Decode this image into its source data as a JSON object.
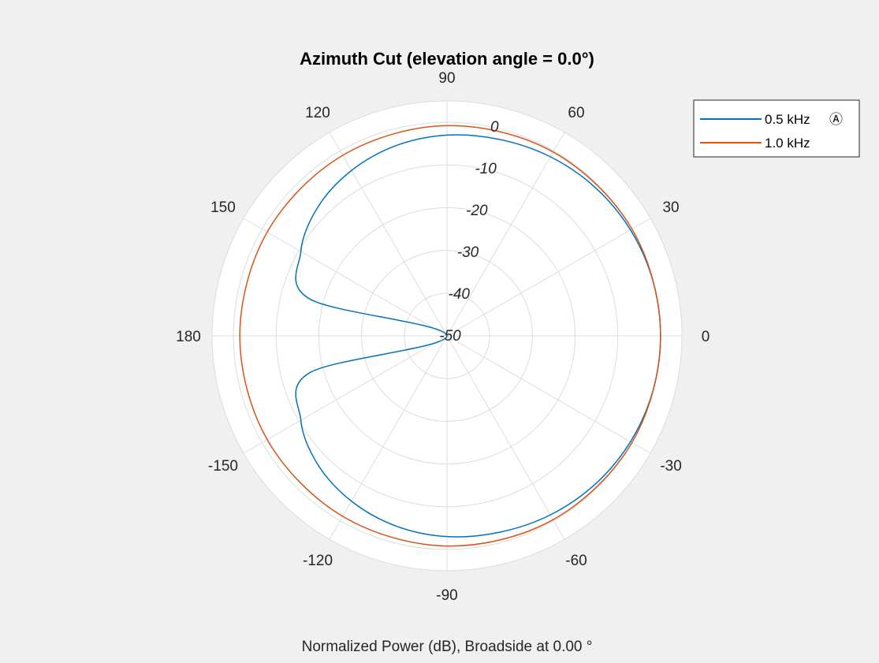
{
  "figure": {
    "background": "#f0f0f0",
    "plot_background": "#ffffff",
    "grid_color": "#dcdcdc"
  },
  "chart_data": {
    "type": "polar-line",
    "title": "Azimuth Cut (elevation angle = 0.0°)",
    "caption": "Normalized Power (dB), Broadside at 0.00 °",
    "angle_ticks": [
      0,
      30,
      60,
      90,
      120,
      150,
      180,
      -150,
      -120,
      -90,
      -60,
      -30
    ],
    "angle_tick_labels": [
      "0",
      "30",
      "60",
      "90",
      "120",
      "150",
      "180",
      "-150",
      "-120",
      "-90",
      "-60",
      "-30"
    ],
    "r_ticks": [
      0,
      -10,
      -20,
      -30,
      -40,
      -50
    ],
    "r_tick_labels": [
      "0",
      "-10",
      "-20",
      "-30",
      "-40",
      "-50"
    ],
    "r_lim": [
      -50,
      5
    ],
    "grid": true,
    "legend_position": "top-right",
    "series": [
      {
        "name": "0.5 kHz",
        "legend_label": "0.5 kHz",
        "legend_marker": "Ⓐ",
        "color": "#0072bd",
        "theta": [
          0,
          15,
          30,
          45,
          60,
          75,
          90,
          105,
          120,
          135,
          150,
          165,
          180,
          -165,
          -150,
          -135,
          -120,
          -105,
          -90,
          -75,
          -60,
          -45,
          -30,
          -15
        ],
        "r": [
          0,
          -0.1,
          -0.4,
          -0.9,
          -1.6,
          -2.4,
          -3.0,
          -3.9,
          -5.3,
          -7.3,
          -10.5,
          -16.8,
          -50,
          -16.8,
          -10.5,
          -7.3,
          -5.3,
          -3.9,
          -3.0,
          -2.4,
          -1.6,
          -0.9,
          -0.4,
          -0.1
        ]
      },
      {
        "name": "1.0 kHz",
        "legend_label": "1.0 kHz",
        "color": "#d95319",
        "theta": [
          0,
          30,
          60,
          90,
          120,
          150,
          180,
          -150,
          -120,
          -90,
          -60,
          -30
        ],
        "r": [
          0,
          0,
          -0.3,
          -0.8,
          -1.2,
          -1.4,
          -1.5,
          -1.4,
          -1.2,
          -0.8,
          -0.3,
          0
        ]
      }
    ]
  }
}
